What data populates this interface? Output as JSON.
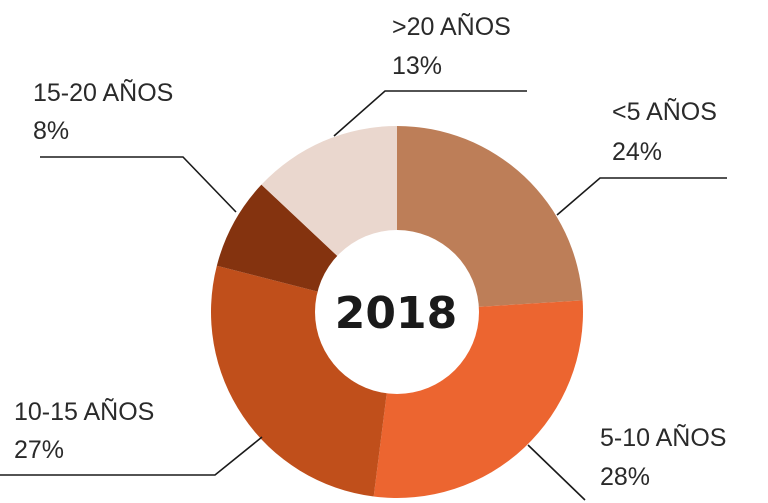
{
  "chart_data": {
    "type": "pie",
    "center_label": "2018",
    "slices": [
      {
        "label": "<5 AÑOS",
        "value": 24,
        "value_label": "24%",
        "color": "#bd7e58"
      },
      {
        "label": "5-10 AÑOS",
        "value": 28,
        "value_label": "28%",
        "color": "#ec6530"
      },
      {
        "label": "10-15 AÑOS",
        "value": 27,
        "value_label": "27%",
        "color": "#c04f1b"
      },
      {
        "label": "15-20 AÑOS",
        "value": 8,
        "value_label": "8%",
        "color": "#84330f"
      },
      {
        "label": ">20 AÑOS",
        "value": 13,
        "value_label": "13%",
        "color": "#ead7ce"
      }
    ]
  }
}
